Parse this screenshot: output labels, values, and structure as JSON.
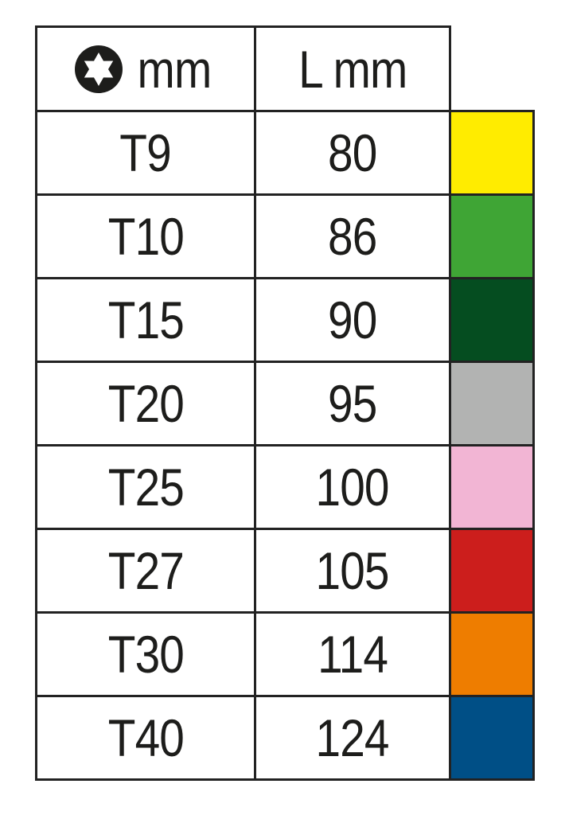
{
  "header": {
    "col1_icon": "torx-icon",
    "col1_label": "mm",
    "col2_label": "L mm"
  },
  "rows": [
    {
      "size": "T9",
      "length": "80",
      "color": "#ffec00"
    },
    {
      "size": "T10",
      "length": "86",
      "color": "#3fa535"
    },
    {
      "size": "T15",
      "length": "90",
      "color": "#054d20"
    },
    {
      "size": "T20",
      "length": "95",
      "color": "#b2b3b2"
    },
    {
      "size": "T25",
      "length": "100",
      "color": "#f2b5d4"
    },
    {
      "size": "T27",
      "length": "105",
      "color": "#cc1e1c"
    },
    {
      "size": "T30",
      "length": "114",
      "color": "#ee7d00"
    },
    {
      "size": "T40",
      "length": "124",
      "color": "#004f86"
    }
  ]
}
